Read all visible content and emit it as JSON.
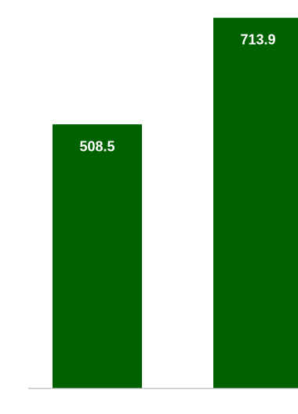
{
  "chart_data": {
    "type": "bar",
    "categories": [
      "",
      ""
    ],
    "series": [
      {
        "values": [
          508.5,
          713.9
        ]
      }
    ],
    "data_labels": [
      "508.5",
      "713.9"
    ],
    "title": "",
    "xlabel": "",
    "ylabel": "",
    "ylim": [
      0,
      730
    ],
    "grid": false,
    "legend": "none",
    "bar_color": "#006100",
    "axis_color": "#bfbfbf",
    "label_color": "#ffffff"
  }
}
